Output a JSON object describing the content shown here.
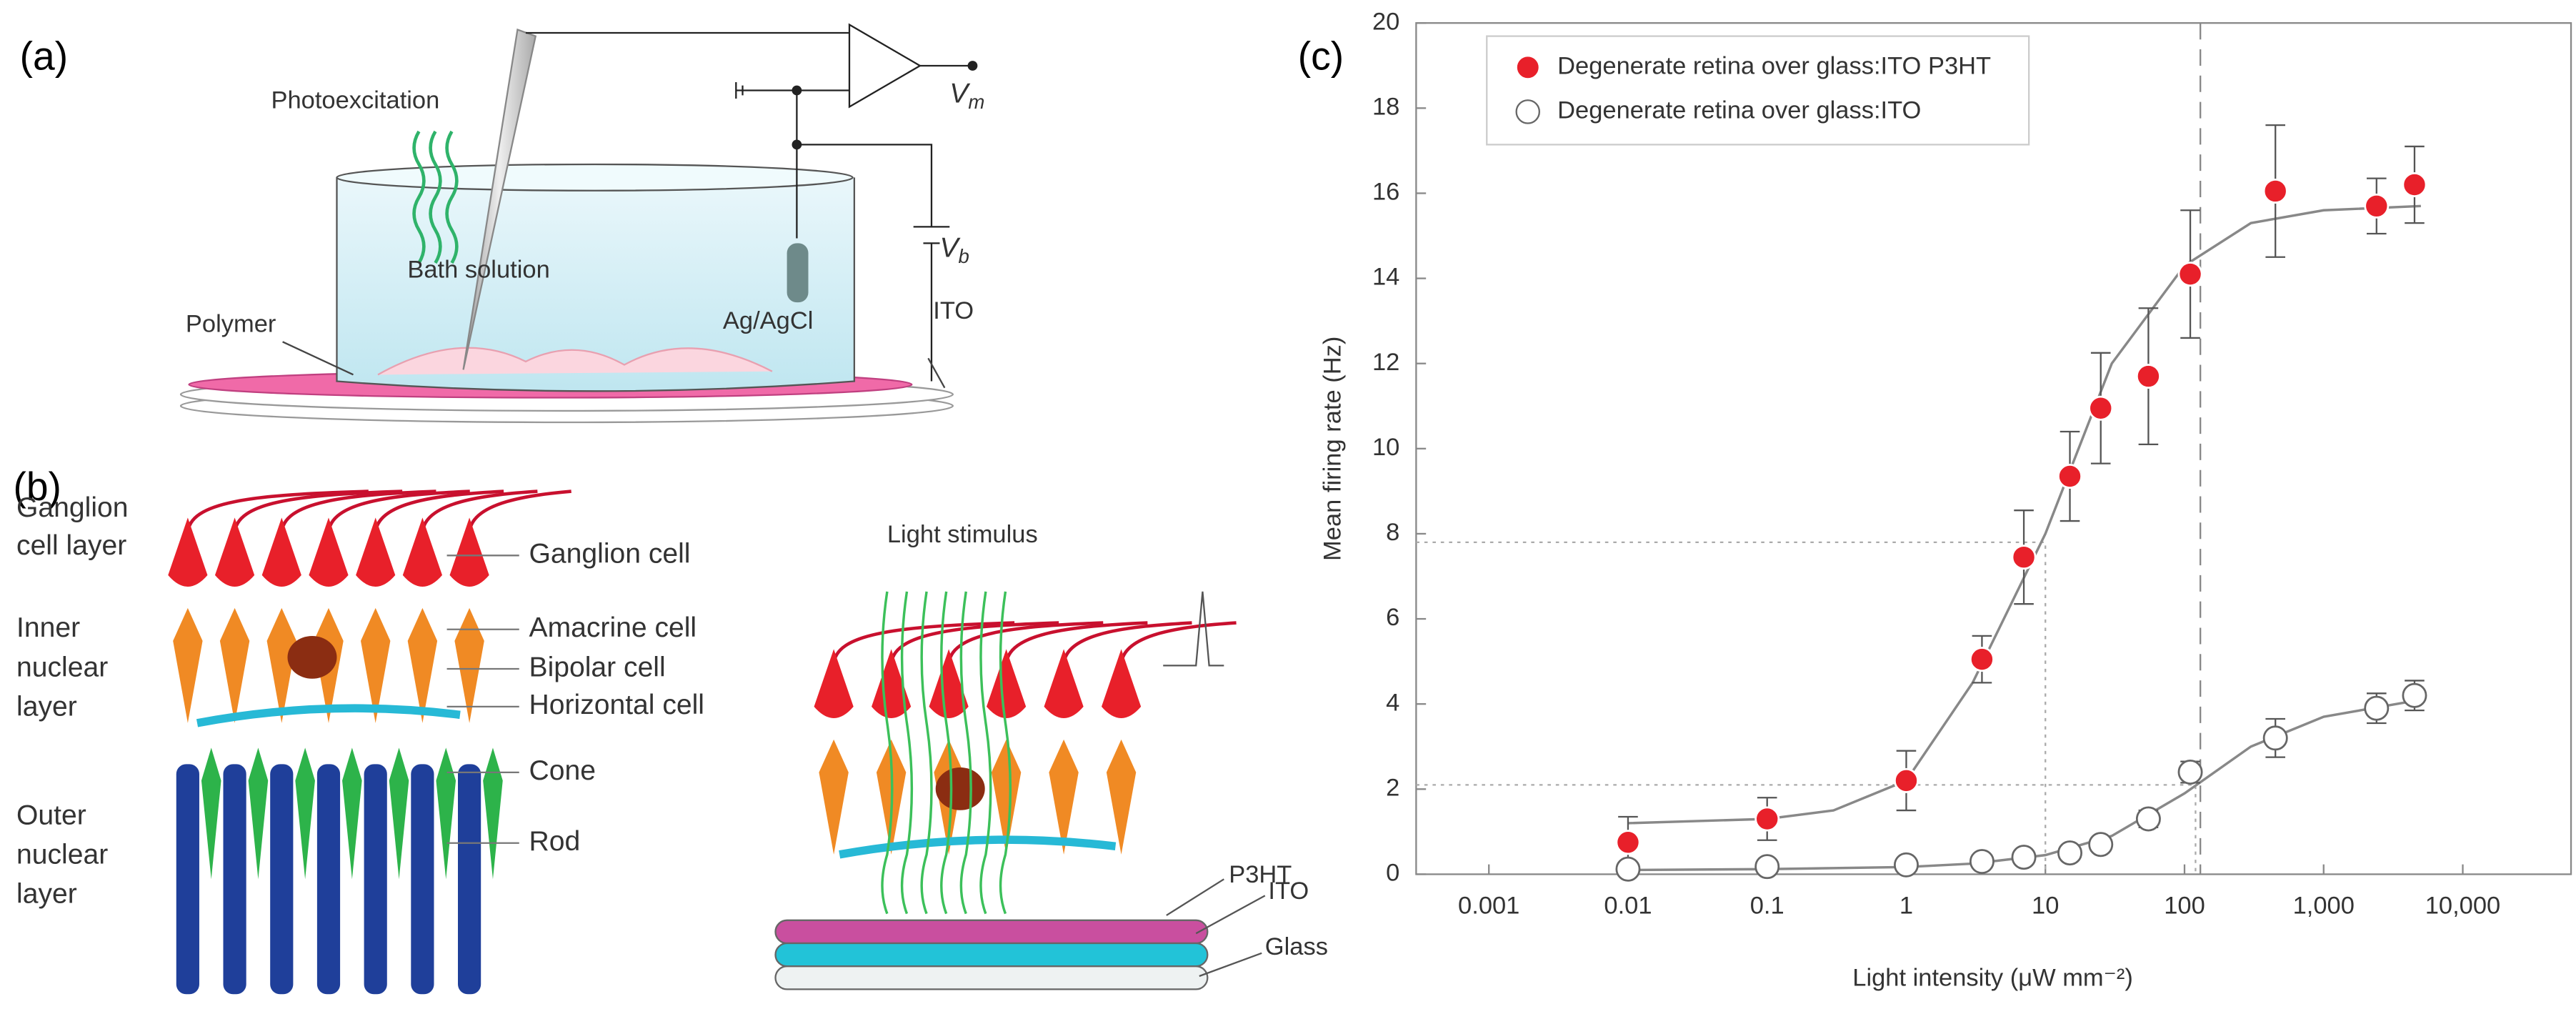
{
  "panel_a": {
    "label": "(a)",
    "photoexcitation": "Photoexcitation",
    "bath": "Bath solution",
    "electrode": "Ag/AgCl",
    "polymer": "Polymer",
    "ito": "ITO",
    "vm": "V",
    "vm_sub": "m",
    "vb": "V",
    "vb_sub": "b"
  },
  "panel_b": {
    "label": "(b)",
    "layers": [
      [
        "Ganglion",
        "cell layer"
      ],
      [
        "Inner",
        "nuclear",
        "layer"
      ],
      [
        "Outer",
        "nuclear",
        "layer"
      ]
    ],
    "cells": [
      "Ganglion cell",
      "Amacrine cell",
      "Bipolar cell",
      "Horizontal cell",
      "Cone",
      "Rod"
    ],
    "stimulus": "Light stimulus",
    "substrate": [
      "P3HT",
      "ITO",
      "Glass"
    ]
  },
  "chart_data": {
    "type": "scatter",
    "label": "(c)",
    "xlabel": "Light intensity (μW mm⁻²)",
    "ylabel": "Mean firing rate (Hz)",
    "log_x": true,
    "legend": "top-left",
    "x": [
      0.01,
      0.1,
      1,
      3.5,
      7,
      15,
      25,
      55,
      110,
      450,
      2400,
      4500
    ],
    "series": [
      {
        "name": "Degenerate retina over glass:ITO P3HT",
        "color": "#e8202a",
        "filled": true,
        "values": [
          0.75,
          1.3,
          2.2,
          5.05,
          7.45,
          9.35,
          10.95,
          11.7,
          14.1,
          16.05,
          15.7,
          16.2
        ],
        "errors": [
          0.6,
          0.5,
          0.7,
          0.55,
          1.1,
          1.05,
          1.3,
          1.6,
          1.5,
          1.55,
          0.65,
          0.9
        ]
      },
      {
        "name": "Degenerate retina over glass:ITO",
        "color": "#666666",
        "filled": false,
        "values": [
          0.12,
          0.18,
          0.22,
          0.3,
          0.4,
          0.5,
          0.7,
          1.3,
          2.4,
          3.2,
          3.9,
          4.2
        ],
        "errors": [
          0.15,
          0.1,
          0.1,
          0.1,
          0.1,
          0.1,
          0.1,
          0.2,
          0.25,
          0.45,
          0.35,
          0.35
        ]
      }
    ],
    "fit_color": "#888888",
    "fits": [
      {
        "x": [
          0.01,
          0.1,
          0.3,
          1,
          3,
          10,
          30,
          100,
          300,
          1000,
          5000
        ],
        "values": [
          1.2,
          1.3,
          1.5,
          2.2,
          4.5,
          8,
          12,
          14.3,
          15.3,
          15.6,
          15.7
        ]
      },
      {
        "x": [
          0.01,
          0.1,
          1,
          3,
          10,
          30,
          100,
          300,
          1000,
          5000
        ],
        "values": [
          0.1,
          0.12,
          0.17,
          0.25,
          0.45,
          0.9,
          1.9,
          3,
          3.7,
          4.1
        ]
      }
    ],
    "dashed_x": 130,
    "guides": [
      {
        "x": 10,
        "y": 7.8
      },
      {
        "x": 120,
        "y": 2.1
      }
    ],
    "xlim": [
      0.0003,
      60000
    ],
    "xticks": [
      0.001,
      0.01,
      0.1,
      1,
      10,
      100,
      {
        "value": 1000,
        "label": "1,000"
      },
      {
        "value": 10000,
        "label": "10,000"
      }
    ],
    "ylim": [
      0,
      20
    ],
    "yticks": [
      0,
      2,
      4,
      6,
      8,
      10,
      12,
      14,
      16,
      18,
      20
    ]
  }
}
